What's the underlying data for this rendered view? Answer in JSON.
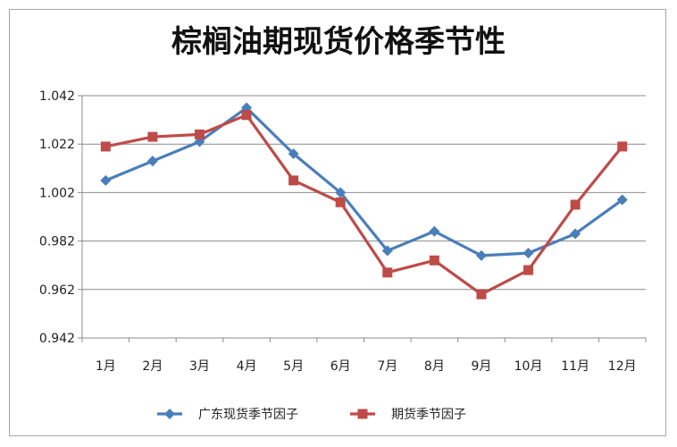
{
  "chart_data": {
    "type": "line",
    "title": "棕榈油期现货价格季节性",
    "categories": [
      "1月",
      "2月",
      "3月",
      "4月",
      "5月",
      "6月",
      "7月",
      "8月",
      "9月",
      "10月",
      "11月",
      "12月"
    ],
    "ylim": [
      0.942,
      1.042
    ],
    "yticks": [
      "0.942",
      "0.962",
      "0.982",
      "1.002",
      "1.022",
      "1.042"
    ],
    "grid": true,
    "legend_position": "bottom",
    "series": [
      {
        "name": "广东现货季节因子",
        "color": "#4a7ebb",
        "marker": "diamond",
        "values": [
          1.007,
          1.015,
          1.023,
          1.037,
          1.018,
          1.002,
          0.978,
          0.986,
          0.976,
          0.977,
          0.985,
          0.999
        ]
      },
      {
        "name": "期货季节因子",
        "color": "#be4b48",
        "marker": "square",
        "values": [
          1.021,
          1.025,
          1.026,
          1.034,
          1.007,
          0.998,
          0.969,
          0.974,
          0.96,
          0.97,
          0.997,
          1.021
        ]
      }
    ]
  }
}
